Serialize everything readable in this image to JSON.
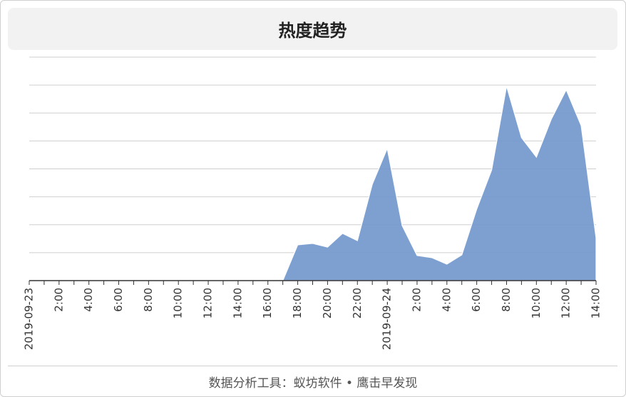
{
  "title": "热度趋势",
  "footer": "数据分析工具：蚁坊软件 • 鹰击早发现",
  "chart_data": {
    "type": "area",
    "color": "#6f96cc",
    "categories": [
      "2019-09-23",
      null,
      "2:00",
      null,
      "4:00",
      null,
      "6:00",
      null,
      "8:00",
      null,
      "10:00",
      null,
      "12:00",
      null,
      "14:00",
      null,
      "16:00",
      null,
      "18:00",
      null,
      "20:00",
      null,
      "22:00",
      null,
      "2019-09-24",
      null,
      "2:00",
      null,
      "4:00",
      null,
      "6:00",
      null,
      "8:00",
      null,
      "10:00",
      null,
      "12:00",
      null,
      "14:00"
    ],
    "values": [
      0,
      0,
      0,
      0,
      0,
      0,
      0,
      0,
      0,
      0,
      0,
      0,
      0,
      0,
      0,
      0,
      0,
      0,
      1.28,
      1.33,
      1.2,
      1.69,
      1.43,
      3.45,
      4.73,
      1.97,
      0.9,
      0.82,
      0.59,
      0.92,
      2.56,
      3.96,
      6.96,
      5.12,
      4.42,
      5.78,
      6.83,
      5.55,
      1.53
    ],
    "ylim": [
      0,
      8
    ],
    "yticks": [
      0,
      1,
      2,
      3,
      4,
      5,
      6,
      7,
      8
    ],
    "grid": true
  }
}
